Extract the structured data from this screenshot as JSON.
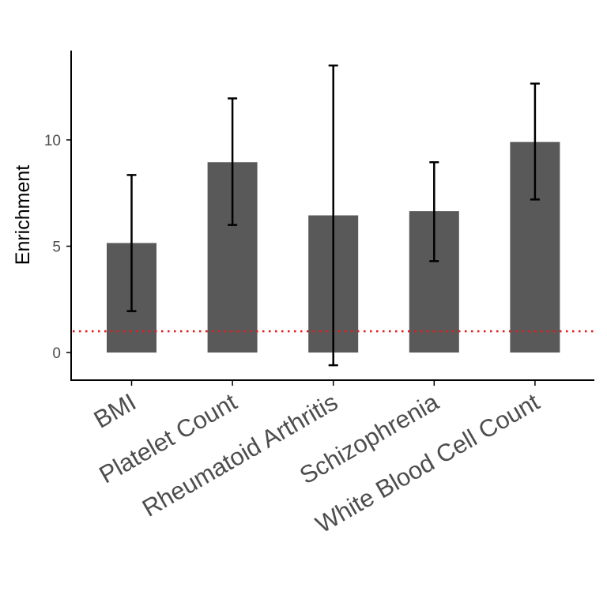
{
  "chart_data": {
    "type": "bar",
    "title": "",
    "xlabel": "",
    "ylabel": "Enrichment",
    "ylim": [
      -1.3,
      14.2
    ],
    "yticks": [
      0,
      5,
      10
    ],
    "grid": false,
    "categories": [
      "BMI",
      "Platelet Count",
      "Rheumatoid Arthritis",
      "Schizophrenia",
      "White Blood Cell Count"
    ],
    "values": [
      5.15,
      8.95,
      6.45,
      6.65,
      9.9
    ],
    "error_low": [
      1.95,
      6.0,
      -0.6,
      4.3,
      7.2
    ],
    "error_high": [
      8.35,
      11.95,
      13.5,
      8.95,
      12.65
    ],
    "reference_line": {
      "y": 1,
      "color": "#e41a1c",
      "style": "dotted"
    },
    "bar_color": "#595959"
  }
}
